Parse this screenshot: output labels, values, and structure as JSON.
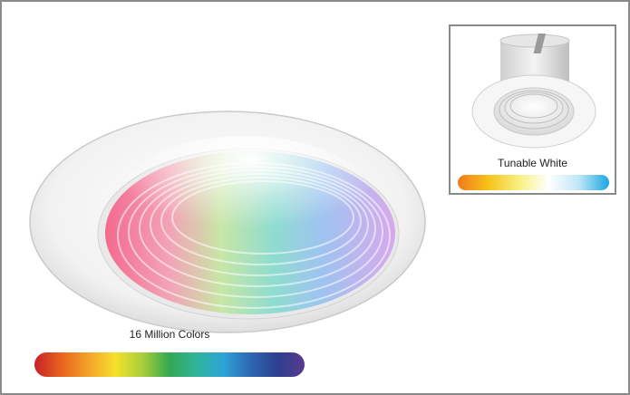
{
  "main": {
    "label": "16 Million Colors",
    "bar_colors": [
      "#c7202b",
      "#e8641e",
      "#f3a32a",
      "#f5e12b",
      "#a8cf3a",
      "#33a851",
      "#2fb59b",
      "#2ea3d6",
      "#2e67b1",
      "#2d3f8f",
      "#5a3a8f"
    ]
  },
  "inset": {
    "label": "Tunable White",
    "bar_colors": [
      "#f07b1d",
      "#f6c21a",
      "#f9ef7e",
      "#ffffff",
      "#bfe6f7",
      "#1ba6e1"
    ]
  }
}
